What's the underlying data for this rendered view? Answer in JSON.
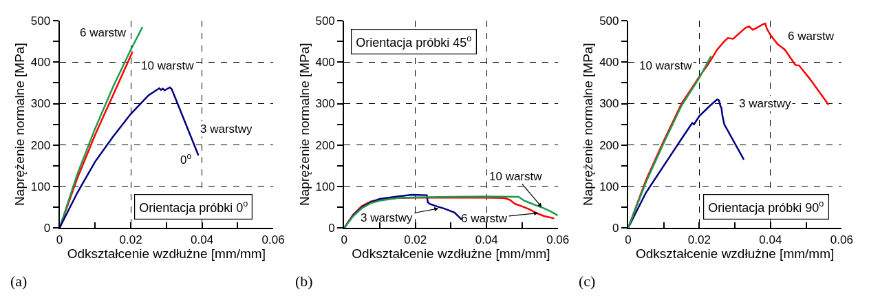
{
  "chart_data": [
    {
      "type": "line",
      "xlabel": "Odkształcenie wzdłużne [mm/mm]",
      "ylabel": "Naprężenie normalne [MPa]",
      "xlim": [
        0,
        0.06
      ],
      "ylim": [
        0,
        500
      ],
      "grid": true,
      "xticks": [
        0,
        {
          "value": 0.01,
          "label": null
        },
        0.02,
        {
          "value": 0.03,
          "label": null
        },
        0.04,
        {
          "value": 0.05,
          "label": null
        },
        0.06
      ],
      "yticks": [
        0,
        {
          "value": 50,
          "label": null
        },
        100,
        {
          "value": 150,
          "label": null
        },
        200,
        {
          "value": 250,
          "label": null
        },
        300,
        {
          "value": 350,
          "label": null
        },
        400,
        {
          "value": 450,
          "label": null
        },
        500
      ],
      "series": [
        {
          "color": "#ff0000",
          "x": [
            0,
            0.005,
            0.01,
            0.015,
            0.0205
          ],
          "values": [
            0,
            120,
            225,
            320,
            425
          ]
        },
        {
          "color": "#1f9a4a",
          "x": [
            0,
            0.005,
            0.01,
            0.015,
            0.02,
            0.0233
          ],
          "values": [
            0,
            130,
            240,
            340,
            430,
            485
          ]
        },
        {
          "color": "#000080",
          "x": [
            0,
            0.005,
            0.01,
            0.015,
            0.02,
            0.025,
            0.028,
            0.0285,
            0.029,
            0.0295,
            0.031,
            0.0315,
            0.039
          ],
          "values": [
            0,
            85,
            160,
            220,
            275,
            320,
            337,
            333,
            336,
            332,
            339,
            335,
            175
          ]
        }
      ],
      "annotations": [
        "6 warstw",
        "10 warstw",
        "3 warstwy",
        "0$^{o}$",
        "Orientacja próbki 0$^{o}$",
        "(a)"
      ]
    },
    {
      "type": "line",
      "xlabel": "Odkształcenie wzdłużne [mm/mm]",
      "ylabel": "Naprężenie normalne [MPa]",
      "xlim": [
        0,
        0.06
      ],
      "ylim": [
        0,
        500
      ],
      "grid": true,
      "xticks": [
        0,
        {
          "value": 0.01,
          "label": null
        },
        0.02,
        {
          "value": 0.03,
          "label": null
        },
        0.04,
        {
          "value": 0.05,
          "label": null
        },
        0.06
      ],
      "yticks": [
        0,
        {
          "value": 50,
          "label": null
        },
        100,
        {
          "value": 150,
          "label": null
        },
        200,
        {
          "value": 250,
          "label": null
        },
        300,
        {
          "value": 350,
          "label": null
        },
        400,
        {
          "value": 450,
          "label": null
        },
        500
      ],
      "series": [
        {
          "color": "#ff0000",
          "x": [
            0,
            0.0025,
            0.005,
            0.0075,
            0.01,
            0.015,
            0.02,
            0.03,
            0.04,
            0.045,
            0.0465,
            0.048,
            0.05,
            0.052,
            0.054,
            0.056,
            0.059
          ],
          "values": [
            0,
            32,
            53,
            64,
            69,
            72,
            73,
            73,
            73,
            72,
            68,
            58,
            52,
            45,
            36,
            29,
            23
          ]
        },
        {
          "color": "#000080",
          "x": [
            0,
            0.0025,
            0.005,
            0.0075,
            0.01,
            0.015,
            0.019,
            0.0232,
            0.0235,
            0.024,
            0.026,
            0.028,
            0.031,
            0.033
          ],
          "values": [
            0,
            30,
            50,
            62,
            70,
            76,
            80,
            79,
            62,
            58,
            52,
            47,
            37,
            20
          ]
        },
        {
          "color": "#1f9a4a",
          "x": [
            0,
            0.0025,
            0.005,
            0.0075,
            0.01,
            0.015,
            0.02,
            0.03,
            0.04,
            0.049,
            0.0505,
            0.052,
            0.054,
            0.056,
            0.058,
            0.06
          ],
          "values": [
            0,
            28,
            48,
            60,
            66,
            72,
            74,
            75,
            76,
            75,
            66,
            61,
            54,
            48,
            40,
            30
          ]
        }
      ],
      "annotations": [
        "Orientacja próbki 45$^{o}$",
        {
          "text": "10 warstw",
          "x": 0.0555,
          "y": 50
        },
        {
          "text": "3 warstwy",
          "x": 0.0265,
          "y": 47
        },
        {
          "text": "6 warstw",
          "x": 0.0545,
          "y": 36
        },
        "(b)"
      ]
    },
    {
      "type": "line",
      "xlabel": "Odkształcenie wzdłużne [mm/mm]",
      "ylabel": "Naprężenie normalne [MPa]",
      "xlim": [
        0,
        0.06
      ],
      "ylim": [
        0,
        500
      ],
      "grid": true,
      "xticks": [
        0,
        {
          "value": 0.01,
          "label": null
        },
        0.02,
        {
          "value": 0.03,
          "label": null
        },
        0.04,
        {
          "value": 0.05,
          "label": null
        },
        0.06
      ],
      "yticks": [
        0,
        {
          "value": 50,
          "label": null
        },
        100,
        {
          "value": 150,
          "label": null
        },
        200,
        {
          "value": 250,
          "label": null
        },
        300,
        {
          "value": 350,
          "label": null
        },
        400,
        {
          "value": 450,
          "label": null
        },
        500
      ],
      "series": [
        {
          "color": "#ff0000",
          "x": [
            0,
            0.005,
            0.01,
            0.015,
            0.02,
            0.0225,
            0.025,
            0.027,
            0.028,
            0.0295,
            0.031,
            0.033,
            0.034,
            0.035,
            0.036,
            0.038,
            0.0385,
            0.039,
            0.04,
            0.042,
            0.043,
            0.044,
            0.045,
            0.047,
            0.048,
            0.051,
            0.0563
          ],
          "values": [
            0,
            115,
            210,
            300,
            365,
            395,
            430,
            450,
            458,
            456,
            468,
            483,
            486,
            478,
            482,
            492,
            493,
            480,
            465,
            443,
            437,
            430,
            418,
            393,
            392,
            360,
            297
          ]
        },
        {
          "color": "#000080",
          "x": [
            0,
            0.005,
            0.01,
            0.015,
            0.018,
            0.0185,
            0.02,
            0.023,
            0.025,
            0.0255,
            0.026,
            0.0262,
            0.0265,
            0.027,
            0.0325
          ],
          "values": [
            0,
            85,
            150,
            215,
            253,
            250,
            270,
            295,
            310,
            308,
            292,
            290,
            270,
            250,
            165
          ]
        },
        {
          "color": "#1f9a4a",
          "x": [
            0,
            0.005,
            0.01,
            0.015,
            0.02,
            0.0233
          ],
          "values": [
            0,
            110,
            205,
            295,
            362,
            415
          ]
        }
      ],
      "annotations": [
        "10 warstw",
        "6 warstw",
        "3 warstwy",
        "Orientacja próbki 90$^{o}$",
        "(c)"
      ]
    }
  ]
}
